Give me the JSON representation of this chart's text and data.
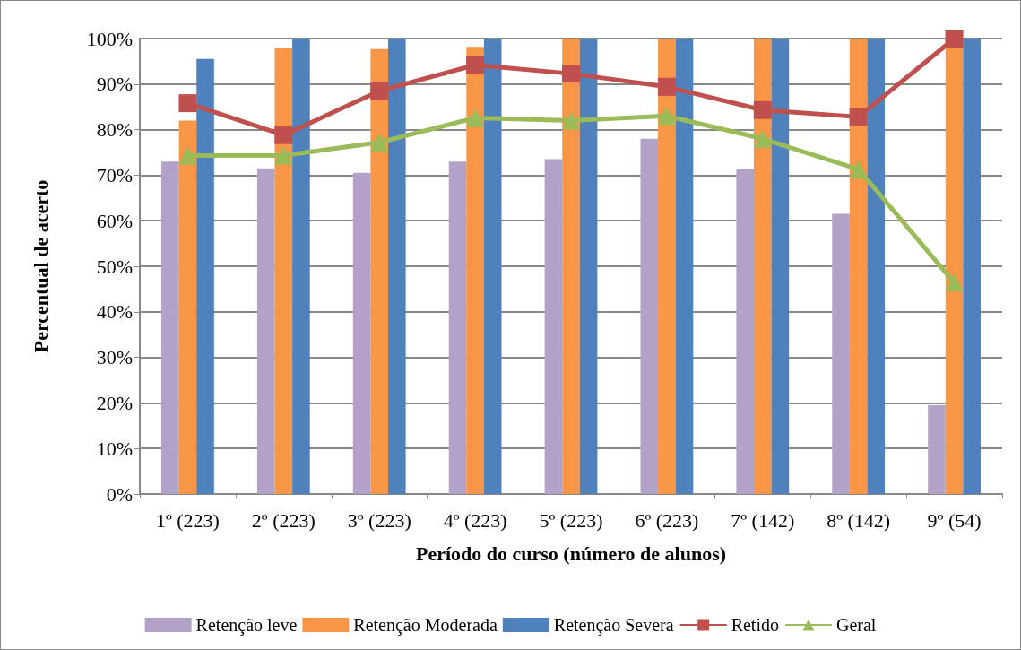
{
  "chart_data": {
    "type": "bar",
    "xlabel": "Período do curso (número de alunos)",
    "ylabel": "Percentual de acerto",
    "categories": [
      "1º (223)",
      "2º (223)",
      "3º (223)",
      "4º (223)",
      "5º (223)",
      "6º (223)",
      "7º (142)",
      "8º (142)",
      "9º (54)"
    ],
    "series": [
      {
        "name": "Retenção leve",
        "color": "#b2a2c7",
        "values": [
          73,
          71.5,
          70.5,
          73,
          73.5,
          78,
          71.3,
          61.5,
          19.5
        ]
      },
      {
        "name": "Retenção Moderada",
        "color": "#f79646",
        "values": [
          82,
          98,
          97.7,
          98.2,
          100,
          100,
          100,
          100,
          100
        ]
      },
      {
        "name": "Retenção Severa",
        "color": "#4f81bd",
        "values": [
          95.5,
          100,
          100,
          100,
          100,
          100,
          100,
          100,
          100
        ]
      },
      {
        "name": "Retido",
        "type": "line",
        "color": "#c0504d",
        "marker": "square",
        "values": [
          85.8,
          78.8,
          88.5,
          94.2,
          92.3,
          89.4,
          84.3,
          82.8,
          100
        ]
      },
      {
        "name": "Geral",
        "type": "line",
        "color": "#9bbb59",
        "marker": "triangle",
        "values": [
          74.3,
          74.3,
          77.2,
          82.6,
          82,
          83,
          78,
          71.3,
          46.4
        ]
      }
    ],
    "ylim": [
      0,
      100
    ],
    "yticks": [
      {
        "value": 0,
        "label": "0%"
      },
      {
        "value": 10,
        "label": "10%"
      },
      {
        "value": 20,
        "label": "20%"
      },
      {
        "value": 30,
        "label": "30%"
      },
      {
        "value": 40,
        "label": "40%"
      },
      {
        "value": 50,
        "label": "50%"
      },
      {
        "value": 60,
        "label": "60%"
      },
      {
        "value": 70,
        "label": "70%"
      },
      {
        "value": 80,
        "label": "80%"
      },
      {
        "value": 90,
        "label": "90%"
      },
      {
        "value": 100,
        "label": "100%"
      }
    ],
    "grid": "y",
    "legend": "bottom"
  }
}
